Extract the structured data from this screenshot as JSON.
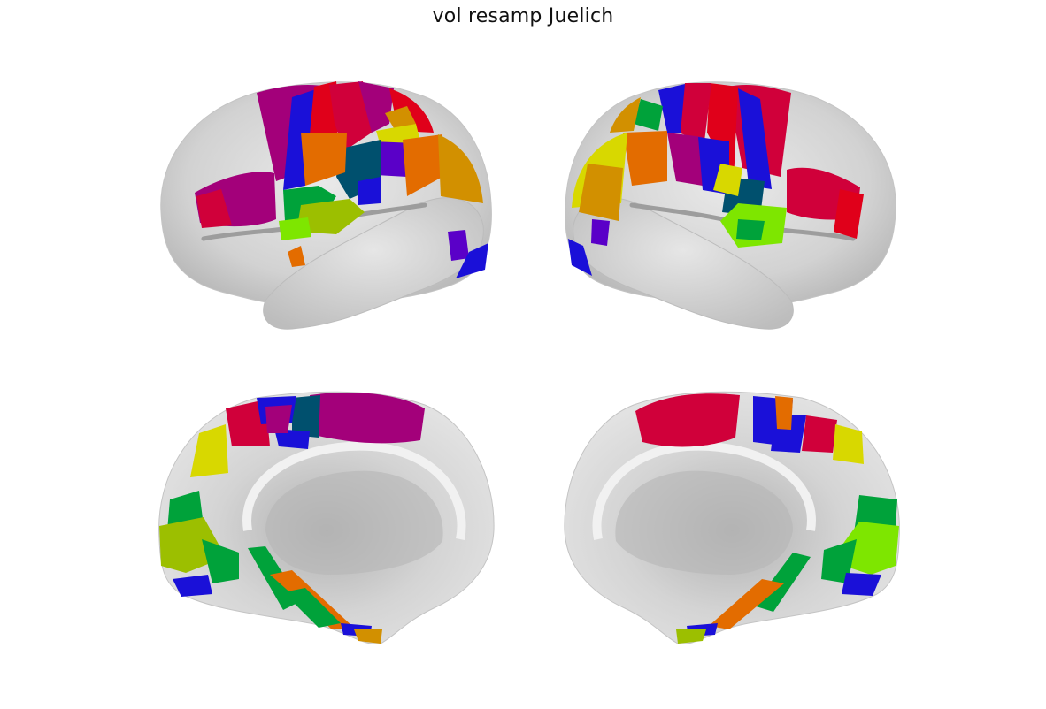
{
  "figure": {
    "title": "vol resamp Juelich"
  },
  "views": [
    {
      "id": "left-lateral",
      "name": "left-hemisphere-lateral-view"
    },
    {
      "id": "right-lateral",
      "name": "right-hemisphere-lateral-view"
    },
    {
      "id": "left-medial",
      "name": "left-hemisphere-medial-view"
    },
    {
      "id": "right-medial",
      "name": "right-hemisphere-medial-view"
    }
  ],
  "colors": {
    "cortex": "#d7d7d7",
    "cortex_dark": "#a9a9a9",
    "cortex_light": "#efefef",
    "parcel_magenta": "#a3007a",
    "parcel_crimson": "#d0003a",
    "parcel_red": "#e0001a",
    "parcel_blue": "#1a10d8",
    "parcel_violet": "#5a00c8",
    "parcel_teal": "#00506e",
    "parcel_orange": "#e36c00",
    "parcel_amber": "#d29000",
    "parcel_yellow": "#d8d800",
    "parcel_lime": "#7ee600",
    "parcel_green": "#00a23a",
    "parcel_olive": "#9cbf00"
  }
}
